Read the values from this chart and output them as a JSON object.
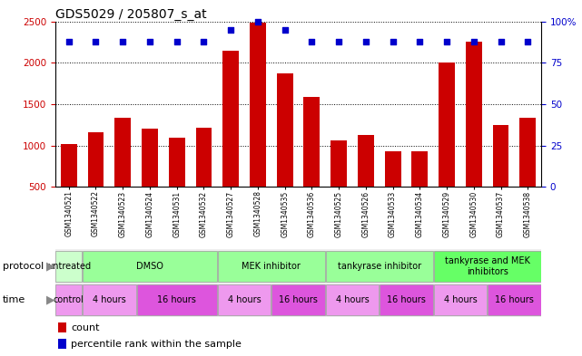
{
  "title": "GDS5029 / 205807_s_at",
  "samples": [
    "GSM1340521",
    "GSM1340522",
    "GSM1340523",
    "GSM1340524",
    "GSM1340531",
    "GSM1340532",
    "GSM1340527",
    "GSM1340528",
    "GSM1340535",
    "GSM1340536",
    "GSM1340525",
    "GSM1340526",
    "GSM1340533",
    "GSM1340534",
    "GSM1340529",
    "GSM1340530",
    "GSM1340537",
    "GSM1340538"
  ],
  "counts": [
    1020,
    1160,
    1330,
    1200,
    1100,
    1210,
    2140,
    2480,
    1870,
    1590,
    1060,
    1130,
    930,
    925,
    2000,
    2260,
    1250,
    1340
  ],
  "percentiles": [
    88,
    88,
    88,
    88,
    88,
    88,
    95,
    100,
    95,
    88,
    88,
    88,
    88,
    88,
    88,
    88,
    88,
    88
  ],
  "bar_color": "#cc0000",
  "dot_color": "#0000cc",
  "ylim_left": [
    500,
    2500
  ],
  "ylim_right": [
    0,
    100
  ],
  "yticks_left": [
    500,
    1000,
    1500,
    2000,
    2500
  ],
  "yticks_right": [
    0,
    25,
    50,
    75,
    100
  ],
  "protocol_spans": [
    {
      "label": "untreated",
      "start": 0,
      "end": 1,
      "color": "#ccffcc"
    },
    {
      "label": "DMSO",
      "start": 1,
      "end": 6,
      "color": "#99ff99"
    },
    {
      "label": "MEK inhibitor",
      "start": 6,
      "end": 10,
      "color": "#99ff99"
    },
    {
      "label": "tankyrase inhibitor",
      "start": 10,
      "end": 14,
      "color": "#99ff99"
    },
    {
      "label": "tankyrase and MEK\ninhibitors",
      "start": 14,
      "end": 18,
      "color": "#66ff66"
    }
  ],
  "time_spans": [
    {
      "label": "control",
      "start": 0,
      "end": 1,
      "color": "#ee99ee"
    },
    {
      "label": "4 hours",
      "start": 1,
      "end": 3,
      "color": "#ee99ee"
    },
    {
      "label": "16 hours",
      "start": 3,
      "end": 6,
      "color": "#dd55dd"
    },
    {
      "label": "4 hours",
      "start": 6,
      "end": 8,
      "color": "#ee99ee"
    },
    {
      "label": "16 hours",
      "start": 8,
      "end": 10,
      "color": "#dd55dd"
    },
    {
      "label": "4 hours",
      "start": 10,
      "end": 12,
      "color": "#ee99ee"
    },
    {
      "label": "16 hours",
      "start": 12,
      "end": 14,
      "color": "#dd55dd"
    },
    {
      "label": "4 hours",
      "start": 14,
      "end": 16,
      "color": "#ee99ee"
    },
    {
      "label": "16 hours",
      "start": 16,
      "end": 18,
      "color": "#dd55dd"
    }
  ],
  "background_color": "#ffffff",
  "left_axis_color": "#cc0000",
  "right_axis_color": "#0000cc",
  "tick_fontsize": 7.5,
  "title_fontsize": 10,
  "label_area_color": "#dddddd"
}
